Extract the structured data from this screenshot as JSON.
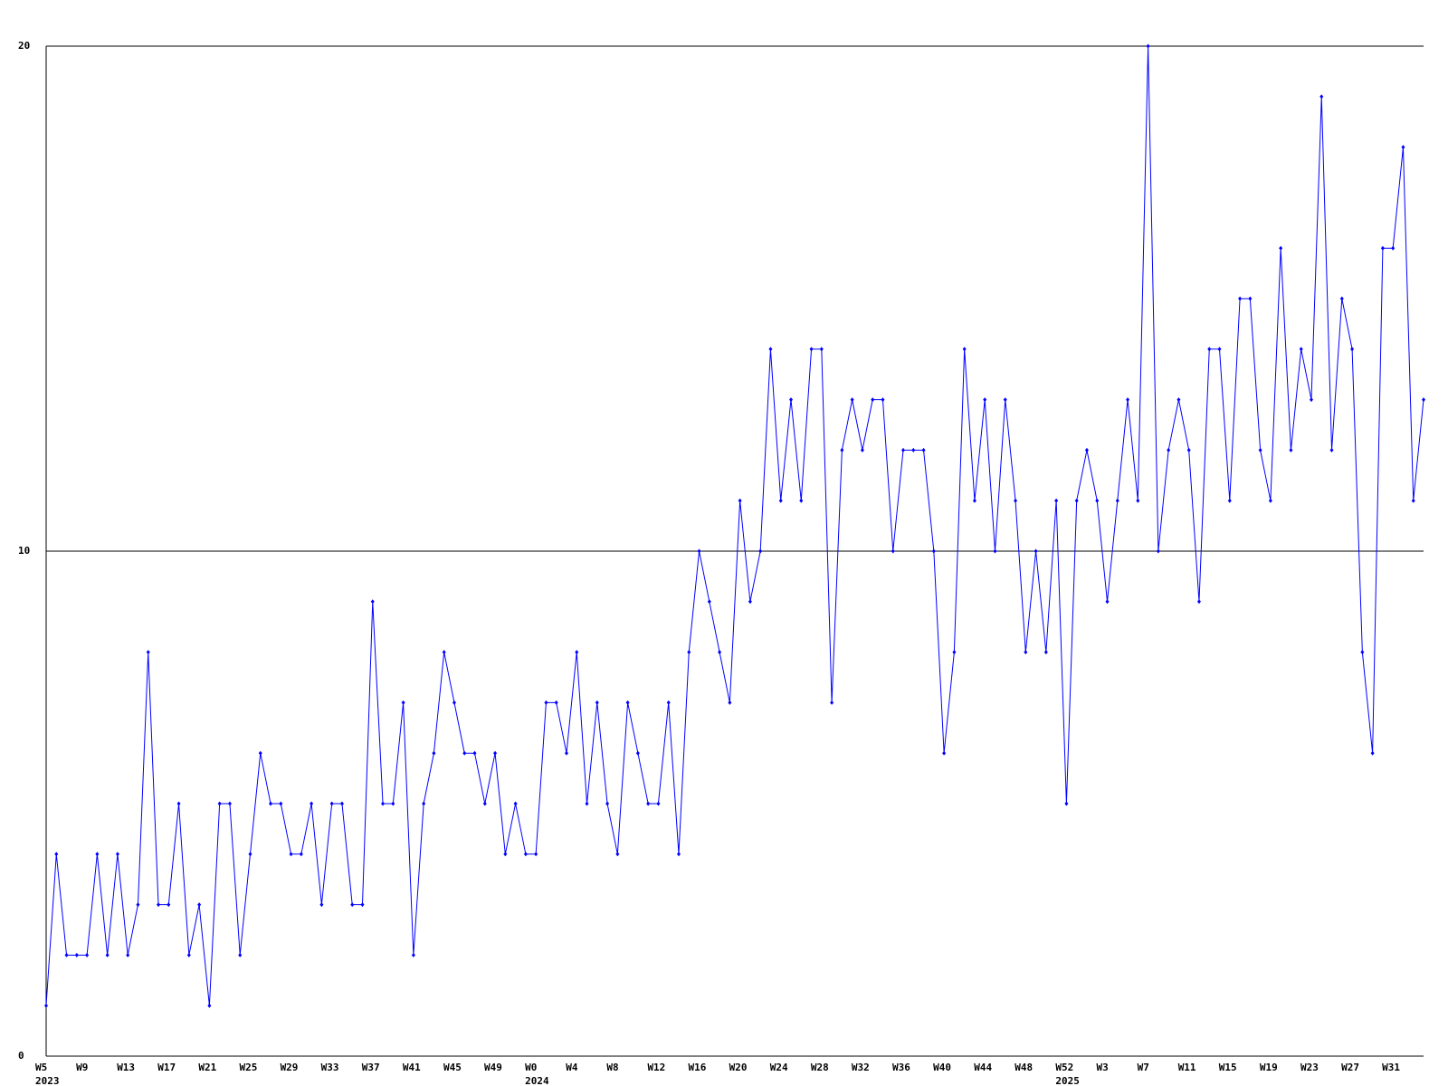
{
  "chart_data": {
    "type": "line",
    "categories": [
      "W5",
      null,
      null,
      null,
      "W9",
      null,
      null,
      null,
      "W13",
      null,
      null,
      null,
      "W17",
      null,
      null,
      null,
      "W21",
      null,
      null,
      null,
      "W25",
      null,
      null,
      null,
      "W29",
      null,
      null,
      null,
      "W33",
      null,
      null,
      null,
      "W37",
      null,
      null,
      null,
      "W41",
      null,
      null,
      null,
      "W45",
      null,
      null,
      null,
      "W49",
      null,
      null,
      null,
      "W0",
      null,
      null,
      null,
      "W4",
      null,
      null,
      null,
      "W8",
      null,
      null,
      null,
      "W12",
      null,
      null,
      null,
      "W16",
      null,
      null,
      null,
      "W20",
      null,
      null,
      null,
      "W24",
      null,
      null,
      null,
      "W28",
      null,
      null,
      null,
      "W32",
      null,
      null,
      null,
      "W36",
      null,
      null,
      null,
      "W40",
      null,
      null,
      null,
      "W44",
      null,
      null,
      null,
      "W48",
      null,
      null,
      null,
      "W52",
      null,
      null,
      null,
      "W3",
      null,
      null,
      null,
      "W7",
      null,
      null,
      null,
      "W11",
      null,
      null,
      null,
      "W15",
      null,
      null,
      null,
      "W19",
      null,
      null,
      null,
      "W23",
      null,
      null,
      null,
      "W27",
      null,
      null,
      null,
      "W31",
      null,
      null,
      null
    ],
    "year_labels": [
      "2023",
      null,
      null,
      null,
      null,
      null,
      null,
      null,
      null,
      null,
      null,
      null,
      null,
      null,
      null,
      null,
      null,
      null,
      null,
      null,
      null,
      null,
      null,
      null,
      null,
      null,
      null,
      null,
      null,
      null,
      null,
      null,
      null,
      null,
      null,
      null,
      null,
      null,
      null,
      null,
      null,
      null,
      null,
      null,
      null,
      null,
      null,
      null,
      "2024",
      null,
      null,
      null,
      null,
      null,
      null,
      null,
      null,
      null,
      null,
      null,
      null,
      null,
      null,
      null,
      null,
      null,
      null,
      null,
      null,
      null,
      null,
      null,
      null,
      null,
      null,
      null,
      null,
      null,
      null,
      null,
      null,
      null,
      null,
      null,
      null,
      null,
      null,
      null,
      null,
      null,
      null,
      null,
      null,
      null,
      null,
      null,
      null,
      null,
      null,
      null,
      "2025",
      null,
      null,
      null,
      null,
      null,
      null,
      null,
      null,
      null,
      null,
      null,
      null,
      null,
      null,
      null,
      null,
      null,
      null,
      null,
      null,
      null,
      null,
      null,
      null,
      null,
      null,
      null,
      null,
      null,
      null,
      null,
      null,
      null,
      null
    ],
    "series": [
      {
        "color": "#0000ff",
        "values": [
          1,
          4,
          2,
          2,
          2,
          4,
          2,
          4,
          2,
          3,
          8,
          3,
          3,
          5,
          2,
          3,
          1,
          5,
          5,
          2,
          4,
          6,
          5,
          5,
          4,
          4,
          5,
          3,
          5,
          5,
          3,
          3,
          9,
          5,
          5,
          7,
          2,
          5,
          6,
          8,
          7,
          6,
          6,
          5,
          6,
          4,
          5,
          4,
          4,
          7,
          7,
          6,
          8,
          5,
          7,
          5,
          4,
          7,
          6,
          5,
          5,
          7,
          4,
          8,
          10,
          9,
          8,
          7,
          11,
          9,
          10,
          14,
          11,
          13,
          11,
          14,
          14,
          7,
          12,
          13,
          12,
          13,
          13,
          10,
          12,
          12,
          12,
          10,
          6,
          8,
          14,
          11,
          13,
          10,
          13,
          11,
          8,
          10,
          8,
          11,
          5,
          11,
          12,
          11,
          9,
          11,
          13,
          11,
          20,
          10,
          12,
          13,
          12,
          9,
          14,
          14,
          11,
          15,
          15,
          12,
          11,
          16,
          12,
          14,
          13,
          19,
          12,
          15,
          14,
          8,
          6,
          16,
          16,
          18,
          11,
          13
        ]
      }
    ],
    "ylim": [
      0,
      20
    ],
    "yticks": [
      0,
      10,
      20
    ],
    "grid": true
  }
}
